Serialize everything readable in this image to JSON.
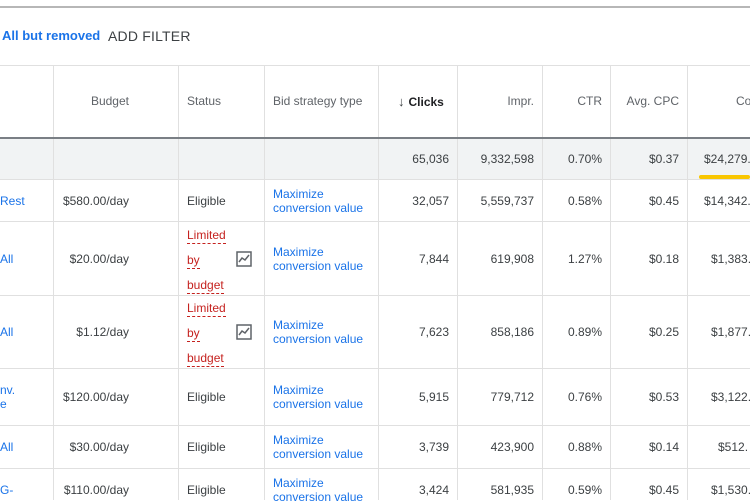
{
  "filters": {
    "chip": "All but removed",
    "add_filter": "ADD FILTER"
  },
  "columns": {
    "budget": "Budget",
    "status": "Status",
    "bid_strategy": "Bid strategy type",
    "clicks": "Clicks",
    "impr": "Impr.",
    "ctr": "CTR",
    "avg_cpc": "Avg. CPC",
    "cost": "Co"
  },
  "totals": {
    "clicks": "65,036",
    "impr": "9,332,598",
    "ctr": "0.70%",
    "avg_cpc": "$0.37",
    "cost": "$24,279."
  },
  "rows": [
    {
      "name": "Rest",
      "budget": "$580.00/day",
      "status": "Eligible",
      "bid_1": "Maximize",
      "bid_2": "conversion value",
      "clicks": "32,057",
      "impr": "5,559,737",
      "ctr": "0.58%",
      "avg_cpc": "$0.45",
      "cost": "$14,342."
    },
    {
      "name": "All",
      "budget": "$20.00/day",
      "status_1": "Limited",
      "status_2": "by",
      "status_3": "budget",
      "bid_1": "Maximize",
      "bid_2": "conversion value",
      "clicks": "7,844",
      "impr": "619,908",
      "ctr": "1.27%",
      "avg_cpc": "$0.18",
      "cost": "$1,383."
    },
    {
      "name": "All",
      "budget": "$1.12/day",
      "status_1": "Limited",
      "status_2": "by",
      "status_3": "budget",
      "bid_1": "Maximize",
      "bid_2": "conversion value",
      "clicks": "7,623",
      "impr": "858,186",
      "ctr": "0.89%",
      "avg_cpc": "$0.25",
      "cost": "$1,877."
    },
    {
      "name_1": "nv.",
      "name_2": "e",
      "budget": "$120.00/day",
      "status": "Eligible",
      "bid_1": "Maximize",
      "bid_2": "conversion value",
      "clicks": "5,915",
      "impr": "779,712",
      "ctr": "0.76%",
      "avg_cpc": "$0.53",
      "cost": "$3,122."
    },
    {
      "name": "All",
      "budget": "$30.00/day",
      "status": "Eligible",
      "bid_1": "Maximize",
      "bid_2": "conversion value",
      "clicks": "3,739",
      "impr": "423,900",
      "ctr": "0.88%",
      "avg_cpc": "$0.14",
      "cost": "$512."
    },
    {
      "name": "G-",
      "budget": "$110.00/day",
      "status": "Eligible",
      "bid_1": "Maximize",
      "bid_2": "conversion value",
      "clicks": "3,424",
      "impr": "581,935",
      "ctr": "0.59%",
      "avg_cpc": "$0.45",
      "cost": "$1,530."
    }
  ],
  "colors": {
    "link": "#1a73e8",
    "limited": "#c5221f",
    "highlight": "#f9c600",
    "total_row_bg": "#f1f3f4"
  },
  "icons": {
    "sort": "arrow-down-icon",
    "limited_chart": "trend-chart-icon"
  }
}
